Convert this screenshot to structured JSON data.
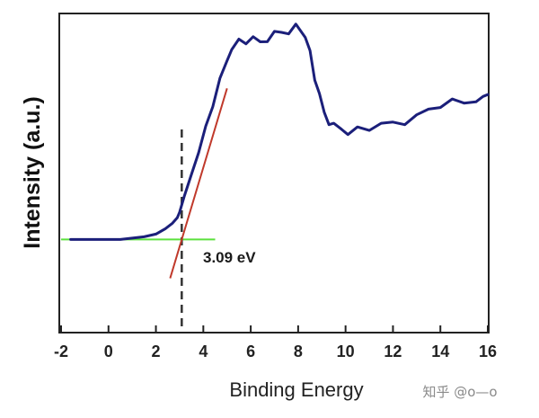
{
  "chart_data": {
    "type": "line",
    "title": "",
    "xlabel": "Binding Energy",
    "ylabel": "Intensity (a.u.)",
    "xlim": [
      -2,
      16
    ],
    "ylim": [
      0,
      1
    ],
    "x_ticks": [
      -2,
      0,
      2,
      4,
      6,
      8,
      10,
      12,
      14,
      16
    ],
    "x_tick_labels": [
      "-2",
      "0",
      "2",
      "4",
      "6",
      "8",
      "10",
      "12",
      "14",
      "16"
    ],
    "series": [
      {
        "color": "#1b1f7a",
        "x": [
          -1.6,
          -1.0,
          -0.5,
          0.0,
          0.5,
          1.0,
          1.5,
          2.0,
          2.4,
          2.7,
          2.9,
          3.0,
          3.2,
          3.5,
          3.8,
          4.1,
          4.4,
          4.7,
          5.0,
          5.2,
          5.5,
          5.8,
          6.1,
          6.4,
          6.7,
          7.0,
          7.3,
          7.6,
          7.9,
          8.1,
          8.3,
          8.5,
          8.7,
          8.9,
          9.1,
          9.3,
          9.5,
          9.8,
          10.1,
          10.5,
          11.0,
          11.5,
          12.0,
          12.5,
          13.0,
          13.5,
          14.0,
          14.5,
          15.0,
          15.5,
          15.8,
          16.0
        ],
        "y": [
          0.12,
          0.12,
          0.12,
          0.12,
          0.12,
          0.125,
          0.13,
          0.14,
          0.16,
          0.18,
          0.2,
          0.22,
          0.28,
          0.36,
          0.44,
          0.53,
          0.62,
          0.71,
          0.79,
          0.82,
          0.84,
          0.85,
          0.87,
          0.85,
          0.86,
          0.87,
          0.88,
          0.89,
          0.91,
          0.9,
          0.86,
          0.8,
          0.72,
          0.66,
          0.59,
          0.55,
          0.53,
          0.53,
          0.52,
          0.53,
          0.53,
          0.54,
          0.54,
          0.56,
          0.58,
          0.6,
          0.61,
          0.62,
          0.63,
          0.64,
          0.64,
          0.66
        ]
      }
    ],
    "tangent_line": {
      "color": "#c0392b",
      "x": [
        2.6,
        5.0
      ]
    },
    "baseline_line": {
      "color": "#5ce03d",
      "x": [
        -2,
        4.5
      ],
      "y": 0.12
    },
    "marker_line": {
      "color": "#333333",
      "style": "dashed",
      "x": 3.09
    },
    "annotation": {
      "text": "3.09 eV",
      "x": 3.09
    },
    "grid": false,
    "legend": "none"
  },
  "watermark": {
    "text": "知乎 @o—o"
  }
}
